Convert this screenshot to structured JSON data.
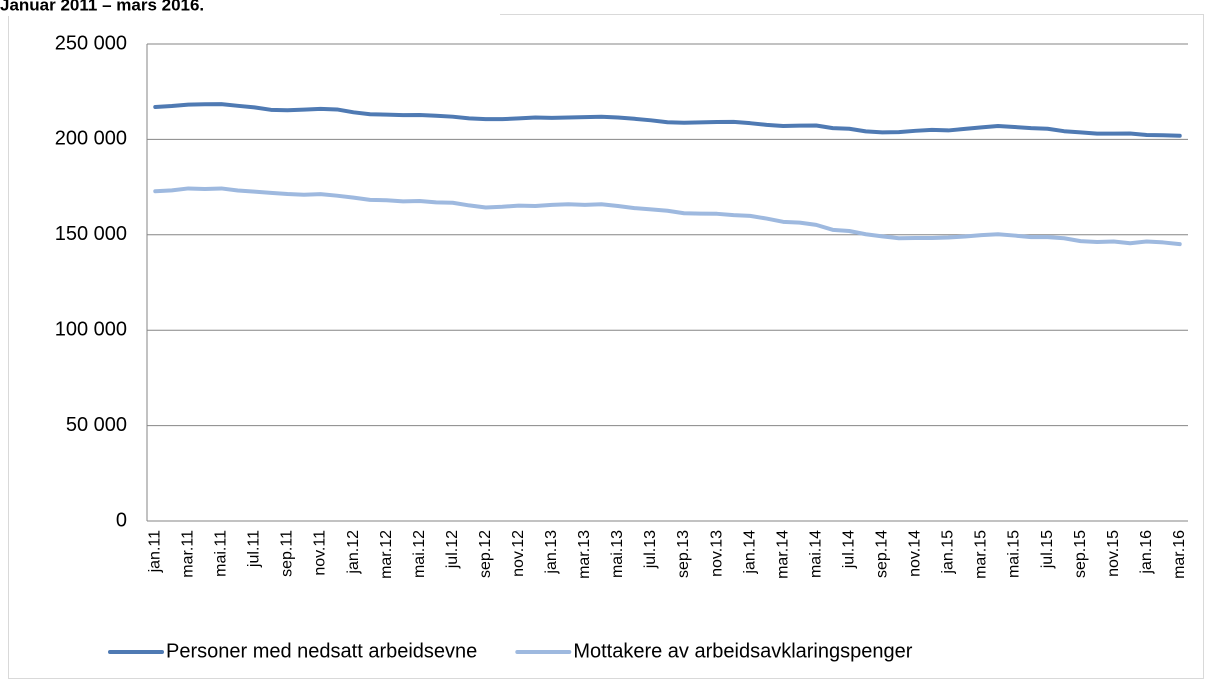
{
  "chart_data": {
    "type": "line",
    "title": "Januar 2011 – mars 2016.",
    "categories": [
      "jan.11",
      null,
      "mar.11",
      null,
      "mai.11",
      null,
      "jul.11",
      null,
      "sep.11",
      null,
      "nov.11",
      null,
      "jan.12",
      null,
      "mar.12",
      null,
      "mai.12",
      null,
      "jul.12",
      null,
      "sep.12",
      null,
      "nov.12",
      null,
      "jan.13",
      null,
      "mar.13",
      null,
      "mai.13",
      null,
      "jul.13",
      null,
      "sep.13",
      null,
      "nov.13",
      null,
      "jan.14",
      null,
      "mar.14",
      null,
      "mai.14",
      null,
      "jul.14",
      null,
      "sep.14",
      null,
      "nov.14",
      null,
      "jan.15",
      null,
      "mar.15",
      null,
      "mai.15",
      null,
      "jul.15",
      null,
      "sep.15",
      null,
      "nov.15",
      null,
      "jan.16",
      null,
      "mar.16"
    ],
    "series": [
      {
        "name": "Personer med nedsatt arbeidsevne",
        "color": "#4f7ab3",
        "values": [
          217000,
          217500,
          218200,
          218400,
          218500,
          217600,
          216800,
          215500,
          215300,
          215600,
          216000,
          215700,
          214200,
          213200,
          213000,
          212700,
          212800,
          212400,
          211900,
          211000,
          210600,
          210600,
          211000,
          211500,
          211300,
          211500,
          211700,
          211900,
          211500,
          210800,
          210000,
          209000,
          208700,
          208900,
          209100,
          209200,
          208500,
          207600,
          207000,
          207200,
          207300,
          205900,
          205600,
          204200,
          203700,
          203800,
          204500,
          205000,
          204700,
          205500,
          206300,
          207000,
          206500,
          205900,
          205600,
          204300,
          203700,
          203000,
          203000,
          203100,
          202300,
          202200,
          201900
        ]
      },
      {
        "name": "Mottakere av arbeidsavklaringspenger",
        "color": "#9eb9df",
        "values": [
          172800,
          173300,
          174300,
          174000,
          174300,
          173200,
          172600,
          172000,
          171400,
          171000,
          171300,
          170500,
          169500,
          168300,
          168100,
          167500,
          167700,
          167000,
          166800,
          165400,
          164300,
          164700,
          165300,
          165100,
          165700,
          166000,
          165700,
          166000,
          165100,
          164000,
          163300,
          162600,
          161300,
          161100,
          161000,
          160300,
          159900,
          158500,
          156800,
          156400,
          155200,
          152600,
          152000,
          150300,
          149200,
          148200,
          148300,
          148300,
          148600,
          149100,
          149800,
          150300,
          149600,
          148800,
          148800,
          148200,
          146700,
          146200,
          146500,
          145600,
          146500,
          146000,
          145100
        ]
      }
    ],
    "ylim": [
      0,
      250000
    ],
    "yticks": [
      0,
      {
        "value": 50000,
        "label": "50 000"
      },
      {
        "value": 100000,
        "label": "100 000"
      },
      {
        "value": 150000,
        "label": "150 000"
      },
      {
        "value": 200000,
        "label": "200 000"
      },
      {
        "value": 250000,
        "label": "250 000"
      }
    ],
    "grid": true,
    "legend": "bottom"
  }
}
